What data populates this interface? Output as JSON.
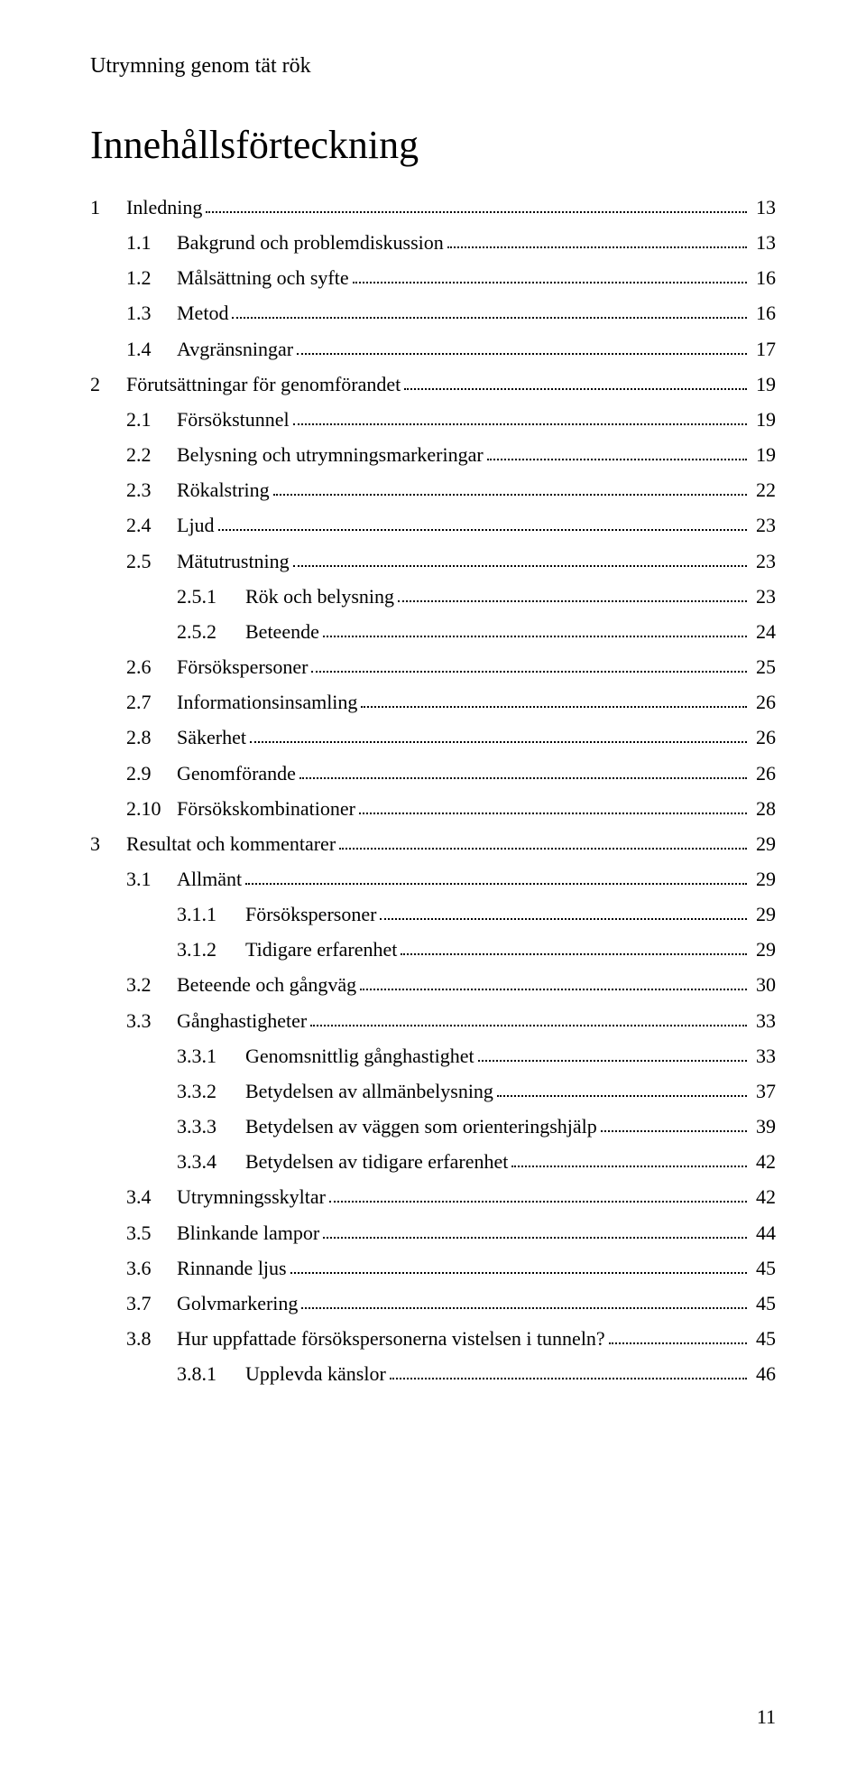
{
  "header": "Utrymning genom tät rök",
  "title": "Innehållsförteckning",
  "pageNumber": "11",
  "toc": [
    {
      "depth": 0,
      "num": "1",
      "label": "Inledning",
      "page": "13"
    },
    {
      "depth": 1,
      "num": "1.1",
      "label": "Bakgrund och problemdiskussion",
      "page": "13"
    },
    {
      "depth": 1,
      "num": "1.2",
      "label": "Målsättning och syfte",
      "page": "16"
    },
    {
      "depth": 1,
      "num": "1.3",
      "label": "Metod",
      "page": "16"
    },
    {
      "depth": 1,
      "num": "1.4",
      "label": "Avgränsningar",
      "page": "17"
    },
    {
      "depth": 0,
      "num": "2",
      "label": "Förutsättningar för genomförandet",
      "page": "19"
    },
    {
      "depth": 1,
      "num": "2.1",
      "label": "Försökstunnel",
      "page": "19"
    },
    {
      "depth": 1,
      "num": "2.2",
      "label": "Belysning och utrymningsmarkeringar",
      "page": "19"
    },
    {
      "depth": 1,
      "num": "2.3",
      "label": "Rökalstring",
      "page": "22"
    },
    {
      "depth": 1,
      "num": "2.4",
      "label": "Ljud",
      "page": "23"
    },
    {
      "depth": 1,
      "num": "2.5",
      "label": "Mätutrustning",
      "page": "23"
    },
    {
      "depth": 2,
      "num": "2.5.1",
      "label": "Rök och belysning",
      "page": "23"
    },
    {
      "depth": 2,
      "num": "2.5.2",
      "label": "Beteende",
      "page": "24"
    },
    {
      "depth": 1,
      "num": "2.6",
      "label": "Försökspersoner",
      "page": "25"
    },
    {
      "depth": 1,
      "num": "2.7",
      "label": "Informationsinsamling",
      "page": "26"
    },
    {
      "depth": 1,
      "num": "2.8",
      "label": "Säkerhet",
      "page": "26"
    },
    {
      "depth": 1,
      "num": "2.9",
      "label": "Genomförande",
      "page": "26"
    },
    {
      "depth": 1,
      "num": "2.10",
      "label": "Försökskombinationer",
      "page": "28"
    },
    {
      "depth": 0,
      "num": "3",
      "label": "Resultat och kommentarer",
      "page": "29"
    },
    {
      "depth": 1,
      "num": "3.1",
      "label": "Allmänt",
      "page": "29"
    },
    {
      "depth": 2,
      "num": "3.1.1",
      "label": "Försökspersoner",
      "page": "29"
    },
    {
      "depth": 2,
      "num": "3.1.2",
      "label": "Tidigare erfarenhet",
      "page": "29"
    },
    {
      "depth": 1,
      "num": "3.2",
      "label": "Beteende och gångväg",
      "page": "30"
    },
    {
      "depth": 1,
      "num": "3.3",
      "label": "Gånghastigheter",
      "page": "33"
    },
    {
      "depth": 2,
      "num": "3.3.1",
      "label": "Genomsnittlig gånghastighet",
      "page": "33"
    },
    {
      "depth": 2,
      "num": "3.3.2",
      "label": "Betydelsen av allmänbelysning",
      "page": "37"
    },
    {
      "depth": 2,
      "num": "3.3.3",
      "label": "Betydelsen av väggen som orienteringshjälp",
      "page": "39"
    },
    {
      "depth": 2,
      "num": "3.3.4",
      "label": "Betydelsen av tidigare erfarenhet",
      "page": "42"
    },
    {
      "depth": 1,
      "num": "3.4",
      "label": "Utrymningsskyltar",
      "page": "42"
    },
    {
      "depth": 1,
      "num": "3.5",
      "label": "Blinkande lampor",
      "page": "44"
    },
    {
      "depth": 1,
      "num": "3.6",
      "label": "Rinnande ljus",
      "page": "45"
    },
    {
      "depth": 1,
      "num": "3.7",
      "label": "Golvmarkering",
      "page": "45"
    },
    {
      "depth": 1,
      "num": "3.8",
      "label": "Hur uppfattade försökspersonerna vistelsen i tunneln?",
      "page": "45"
    },
    {
      "depth": 2,
      "num": "3.8.1",
      "label": "Upplevda känslor",
      "page": "46"
    }
  ]
}
